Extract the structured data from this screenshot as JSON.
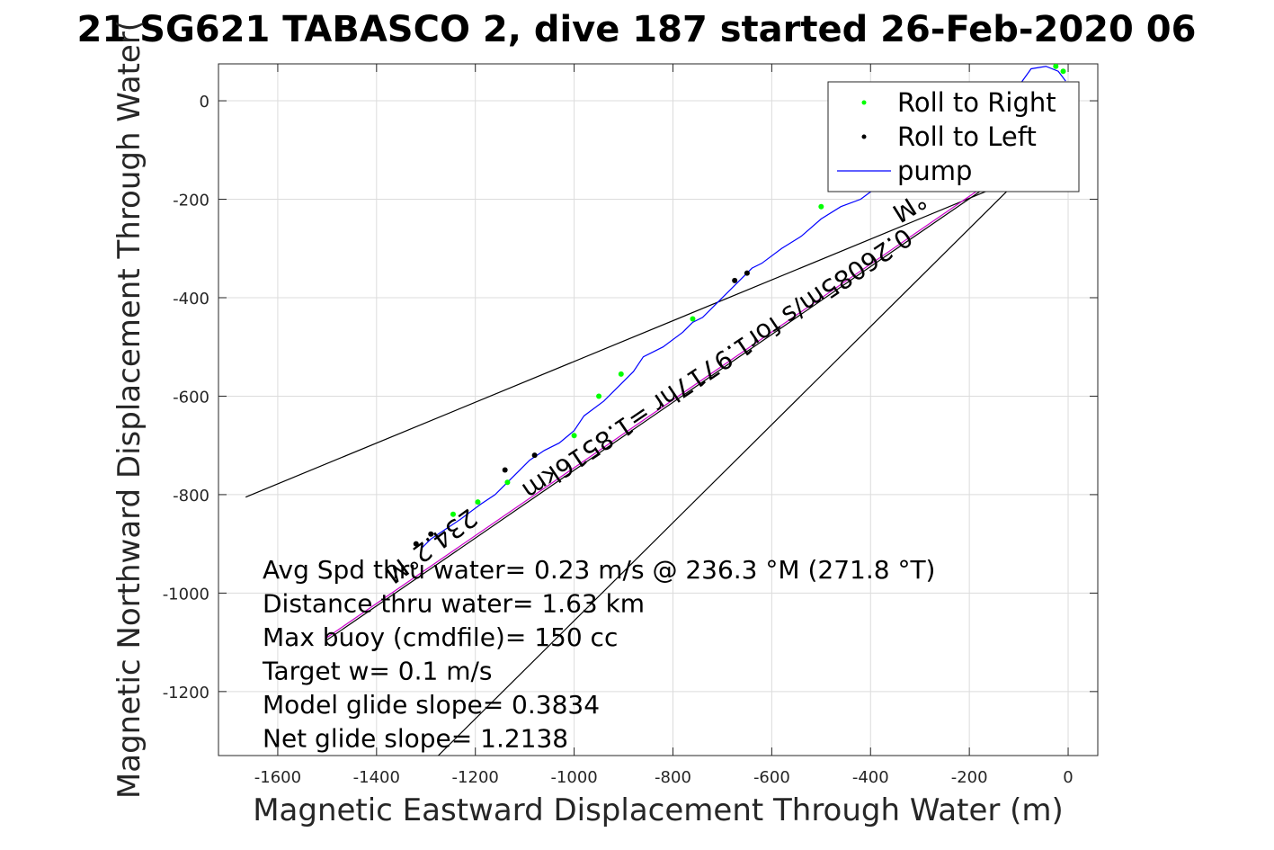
{
  "chart_data": {
    "type": "line",
    "title": "21 SG621 TABASCO 2, dive 187 started 26-Feb-2020 06",
    "xlabel": "Magnetic Eastward Displacement Through Water (m)",
    "ylabel": "Magnetic Northward Displacement Through Water(",
    "xlim": [
      -1720,
      60
    ],
    "ylim": [
      -1330,
      75
    ],
    "xticks": [
      -1600,
      -1400,
      -1200,
      -1000,
      -800,
      -600,
      -400,
      -200,
      0
    ],
    "yticks": [
      0,
      -200,
      -400,
      -600,
      -800,
      -1000,
      -1200
    ],
    "grid": true,
    "legend": {
      "position": "top-right",
      "entries": [
        {
          "label": "Roll to Right",
          "color": "#00ff00",
          "marker": "dot"
        },
        {
          "label": "Roll to Left",
          "color": "#000000",
          "marker": "dot"
        },
        {
          "label": "pump",
          "color": "#0000ff",
          "marker": "line"
        }
      ]
    },
    "series": [
      {
        "name": "pump",
        "color": "#0000ff",
        "x": [
          -5,
          -20,
          -45,
          -75,
          -100,
          -140,
          -180,
          -230,
          -280,
          -330,
          -380,
          -420,
          -460,
          -500,
          -540,
          -580,
          -620,
          -640,
          -660,
          -700,
          -740,
          -760,
          -780,
          -820,
          -860,
          -880,
          -900,
          -940,
          -980,
          -1000,
          -1030,
          -1060,
          -1090,
          -1120,
          -1140,
          -1160,
          -1190,
          -1210,
          -1230,
          -1260,
          -1290,
          -1310
        ],
        "y": [
          40,
          60,
          70,
          65,
          30,
          5,
          -40,
          -70,
          -100,
          -130,
          -170,
          -200,
          -215,
          -240,
          -275,
          -300,
          -330,
          -340,
          -360,
          -400,
          -440,
          -450,
          -470,
          -500,
          -520,
          -550,
          -570,
          -610,
          -640,
          -670,
          -695,
          -710,
          -730,
          -760,
          -780,
          -800,
          -820,
          -835,
          -850,
          -870,
          -890,
          -910
        ]
      }
    ],
    "roll_right_points": [
      {
        "x": -25,
        "y": 70
      },
      {
        "x": -10,
        "y": 60
      },
      {
        "x": -500,
        "y": -215
      },
      {
        "x": -760,
        "y": -443
      },
      {
        "x": -905,
        "y": -555
      },
      {
        "x": -950,
        "y": -600
      },
      {
        "x": -1000,
        "y": -680
      },
      {
        "x": -1135,
        "y": -775
      },
      {
        "x": -1195,
        "y": -815
      },
      {
        "x": -1245,
        "y": -840
      }
    ],
    "roll_left_points": [
      {
        "x": -650,
        "y": -350
      },
      {
        "x": -675,
        "y": -365
      },
      {
        "x": -1080,
        "y": -720
      },
      {
        "x": -1140,
        "y": -750
      },
      {
        "x": -1290,
        "y": -880
      },
      {
        "x": -1320,
        "y": -900
      }
    ],
    "reference_lines": [
      {
        "color": "#000000",
        "x": [
          -1665,
          -120
        ],
        "y": [
          -805,
          -165
        ]
      },
      {
        "color": "#000000",
        "x": [
          -1275,
          -80
        ],
        "y": [
          -1330,
          -140
        ]
      },
      {
        "color": "#cc00cc",
        "x": [
          -1500,
          -100
        ],
        "y": [
          -1090,
          -125
        ]
      },
      {
        "color": "#000000",
        "x": [
          -1500,
          -100
        ],
        "y": [
          -1095,
          -130
        ]
      }
    ],
    "rotated_labels": [
      {
        "text": "234.2°M",
        "x": -1300,
        "y": -890,
        "angle": 144
      },
      {
        "text": "0.26085m/s for1.9717hr =1.8516km",
        "x": -720,
        "y": -520,
        "angle": 146
      },
      {
        "text": "°M",
        "x": -330,
        "y": -200,
        "angle": 148
      }
    ],
    "annotations": [
      "Avg Spd thru water=  0.23 m/s @ 236.3 °M (271.8 °T)",
      "Distance thru water=  1.63 km",
      "Max buoy (cmdfile)= 150 cc",
      "Target w= 0.1 m/s",
      "Model glide slope= 0.3834",
      "Net glide slope= 1.2138"
    ]
  }
}
